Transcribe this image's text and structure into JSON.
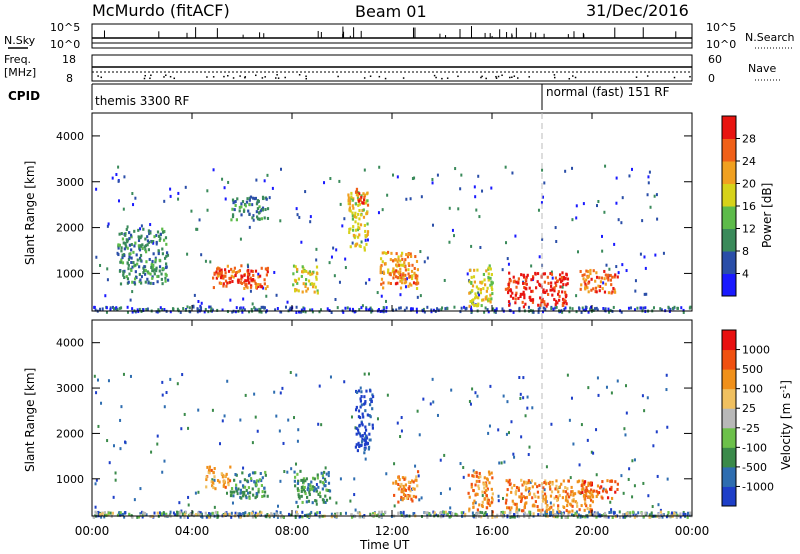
{
  "header": {
    "station": "McMurdo (fitACF)",
    "beam": "Beam 01",
    "date": "31/Dec/2016"
  },
  "status_panels": {
    "nsky_label": "N.Sky",
    "nsky_ticks": [
      "10^5",
      "10^0"
    ],
    "nsearch_label": "N.Search",
    "nsearch_ticks": [
      "10^5",
      "10^0"
    ],
    "freq_label": "Freq.",
    "freq_unit": "[MHz]",
    "freq_ticks": [
      "18",
      "8"
    ],
    "nave_label": "Nave",
    "nave_ticks": [
      "60",
      "0"
    ],
    "cpid_label": "CPID",
    "cpid_modes": [
      {
        "name": "themis 3300 RF",
        "start_hour": 0,
        "end_hour": 18
      },
      {
        "name": "normal (fast) 151 RF",
        "start_hour": 18,
        "end_hour": 24
      }
    ],
    "mode_change_hour": 18
  },
  "chart_data": [
    {
      "type": "heatmap",
      "parameter": "Power",
      "ylabel": "Slant Range [km]",
      "ylim": [
        180,
        4500
      ],
      "yticks": [
        1000,
        2000,
        3000,
        4000
      ],
      "xlim": [
        0,
        24
      ],
      "colorbar_label": "Power [dB]",
      "colorbar_ticks": [
        "4",
        "8",
        "12",
        "16",
        "20",
        "24",
        "28"
      ],
      "colorbar_colors": [
        "#1a1aff",
        "#2a4ea8",
        "#3a8a5a",
        "#5dbb4a",
        "#d6d21a",
        "#f0a020",
        "#f06018",
        "#e81410"
      ],
      "patches": [
        {
          "t": [
            4.8,
            7.0
          ],
          "r": [
            700,
            1200
          ],
          "level": 6
        },
        {
          "t": [
            5.0,
            6.5
          ],
          "r": [
            800,
            1000
          ],
          "level": 7
        },
        {
          "t": [
            8.0,
            9.0
          ],
          "r": [
            600,
            1200
          ],
          "level": 4
        },
        {
          "t": [
            10.2,
            11.0
          ],
          "r": [
            1500,
            2800
          ],
          "level": 4
        },
        {
          "t": [
            10.5,
            11.0
          ],
          "r": [
            2500,
            2900
          ],
          "level": 6
        },
        {
          "t": [
            11.5,
            13.0
          ],
          "r": [
            700,
            1500
          ],
          "level": 5
        },
        {
          "t": [
            12.0,
            13.0
          ],
          "r": [
            800,
            1100
          ],
          "level": 6
        },
        {
          "t": [
            15.0,
            16.0
          ],
          "r": [
            300,
            1200
          ],
          "level": 4
        },
        {
          "t": [
            16.5,
            19.0
          ],
          "r": [
            300,
            1050
          ],
          "level": 7
        },
        {
          "t": [
            19.5,
            21.0
          ],
          "r": [
            600,
            1100
          ],
          "level": 6
        },
        {
          "t": [
            1.0,
            3.0
          ],
          "r": [
            800,
            2000
          ],
          "level": 2
        },
        {
          "t": [
            5.5,
            7.0
          ],
          "r": [
            2200,
            2700
          ],
          "level": 2
        }
      ]
    },
    {
      "type": "heatmap",
      "parameter": "Velocity",
      "ylabel": "Slant Range [km]",
      "ylim": [
        180,
        4500
      ],
      "yticks": [
        1000,
        2000,
        3000,
        4000
      ],
      "xlabel": "Time UT",
      "xlim": [
        0,
        24
      ],
      "xticks": [
        "00:00",
        "04:00",
        "08:00",
        "12:00",
        "16:00",
        "20:00",
        "00:00"
      ],
      "colorbar_label": "Velocity [m s^-1]",
      "colorbar_ticks": [
        "1000",
        "500",
        "100",
        "25",
        "-25",
        "-100",
        "-500",
        "-1000"
      ],
      "colorbar_colors": [
        "#1e3fc8",
        "#2e6db0",
        "#3a8a4a",
        "#6cc04a",
        "#b8b8b8",
        "#f0c060",
        "#f0901a",
        "#f05010",
        "#e81010"
      ],
      "patches": [
        {
          "t": [
            4.5,
            5.5
          ],
          "r": [
            800,
            1300
          ],
          "level": 6
        },
        {
          "t": [
            5.5,
            7.0
          ],
          "r": [
            600,
            1200
          ],
          "level": 2
        },
        {
          "t": [
            8.0,
            9.5
          ],
          "r": [
            500,
            1200
          ],
          "level": 2
        },
        {
          "t": [
            10.5,
            11.2
          ],
          "r": [
            1600,
            3000
          ],
          "level": 0
        },
        {
          "t": [
            12.0,
            13.0
          ],
          "r": [
            500,
            1200
          ],
          "level": 6
        },
        {
          "t": [
            15.0,
            16.0
          ],
          "r": [
            300,
            1200
          ],
          "level": 6
        },
        {
          "t": [
            16.5,
            20.0
          ],
          "r": [
            300,
            1000
          ],
          "level": 6
        },
        {
          "t": [
            19.5,
            21.0
          ],
          "r": [
            600,
            1000
          ],
          "level": 7
        },
        {
          "t": [
            0,
            24
          ],
          "r": [
            180,
            300
          ],
          "level": 4
        }
      ]
    }
  ]
}
